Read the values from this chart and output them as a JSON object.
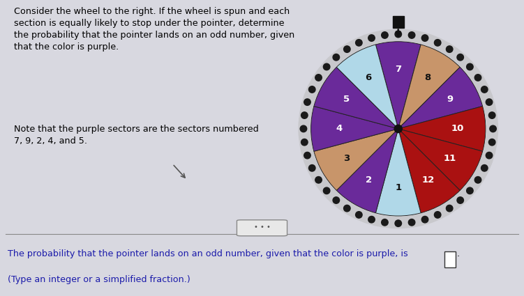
{
  "num_sectors": 12,
  "sectors": [
    {
      "number": 1,
      "color": "#b0d8e8"
    },
    {
      "number": 2,
      "color": "#6a2a9a"
    },
    {
      "number": 3,
      "color": "#c8956a"
    },
    {
      "number": 4,
      "color": "#6a2a9a"
    },
    {
      "number": 5,
      "color": "#6a2a9a"
    },
    {
      "number": 6,
      "color": "#b0d8e8"
    },
    {
      "number": 7,
      "color": "#6a2a9a"
    },
    {
      "number": 8,
      "color": "#c8956a"
    },
    {
      "number": 9,
      "color": "#6a2a9a"
    },
    {
      "number": 10,
      "color": "#aa1111"
    },
    {
      "number": 11,
      "color": "#aa1111"
    },
    {
      "number": 12,
      "color": "#aa1111"
    }
  ],
  "bg_color": "#d8d8e0",
  "ring_outer_color": "#c8c8cc",
  "ring_mid_color": "#b0b0b8",
  "dot_color": "#1a1a1a",
  "n_dots": 44,
  "dot_ring_r": 1.085,
  "dot_size": 0.038,
  "outer_r": 1.0,
  "ring_outer_r": 1.14,
  "ring_inner_r": 1.0,
  "label_r": 0.68,
  "center_dot_r": 0.045,
  "pointer_color": "#111111",
  "title_lines": [
    "Consider the wheel to the right. If the wheel is spun and each",
    "section is equally likely to stop under the pointer, determine",
    "the probability that the pointer lands on an odd number, given",
    "that the color is purple."
  ],
  "note_lines": [
    "Note that the purple sectors are the sectors numbered",
    "7, 9, 2, 4, and 5."
  ],
  "answer_line": "The probability that the pointer lands on an odd number, given that the color is purple, is",
  "answer_note": "(Type an integer or a simplified fraction.)",
  "answer_color": "#1a1aaa",
  "note_color": "#000000",
  "title_color": "#000000"
}
